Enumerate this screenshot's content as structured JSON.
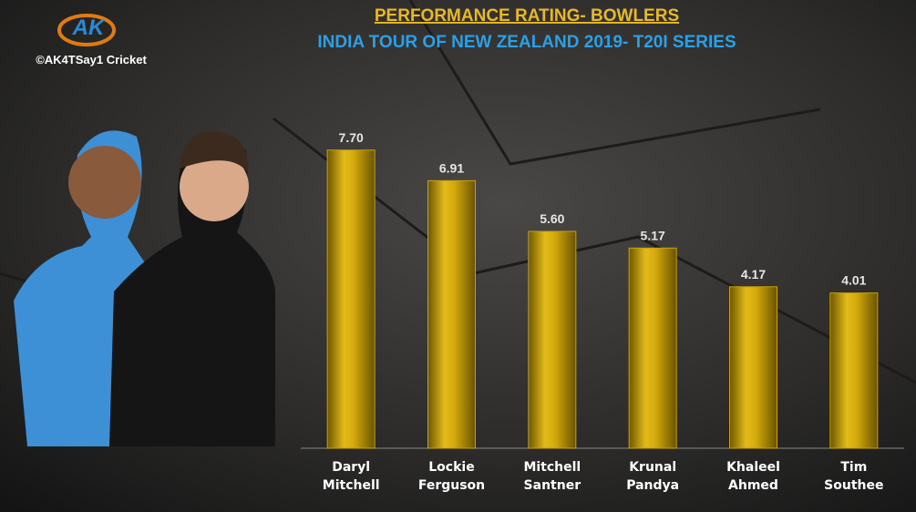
{
  "brand": {
    "logo": "AK",
    "handle": "©AK4TSay1 Cricket"
  },
  "chart_data": {
    "type": "bar",
    "title": "PERFORMANCE RATING- BOWLERS",
    "subtitle": "INDIA TOUR OF NEW ZEALAND 2019- T20I SERIES",
    "categories": [
      "Daryl Mitchell",
      "Lockie Ferguson",
      "Mitchell Santner",
      "Krunal Pandya",
      "Khaleel Ahmed",
      "Tim Southee"
    ],
    "values": [
      7.7,
      6.91,
      5.6,
      5.17,
      4.17,
      4.01
    ],
    "value_labels": [
      "7.70",
      "6.91",
      "5.60",
      "5.17",
      "4.17",
      "4.01"
    ],
    "color": "#c9a10a"
  }
}
